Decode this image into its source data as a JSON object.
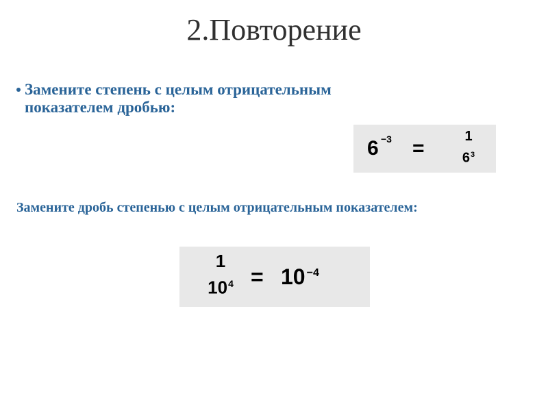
{
  "colors": {
    "background": "#ffffff",
    "title_color": "#303030",
    "accent": "#2a6498",
    "bullet": "#2a6498",
    "formula_bg": "#e8e8e8",
    "formula_text": "#000000",
    "frac_bar": "#000000"
  },
  "typography": {
    "title_family": "Times New Roman",
    "title_size_pt": 33,
    "subtitle_size_pt": 17,
    "subtitle_weight": "bold",
    "subtitle2_size_pt": 15,
    "formula_family": "Arial",
    "formula_weight": "bold"
  },
  "title": "2.Повторение",
  "subtitle1_line1": "Замените степень с целым отрицательным",
  "subtitle1_line2": " показателем дробью:",
  "subtitle2": "Замените дробь степенью с целым отрицательным показателем:",
  "formula1": {
    "base": "6",
    "exponent": "−3",
    "equals": "=",
    "numerator": "1",
    "denominator_base": "6",
    "denominator_exp": "3"
  },
  "formula2": {
    "numerator": "1",
    "denominator_base": "10",
    "denominator_exp": "4",
    "equals": "=",
    "result_base": "10",
    "result_exp": "−4"
  }
}
